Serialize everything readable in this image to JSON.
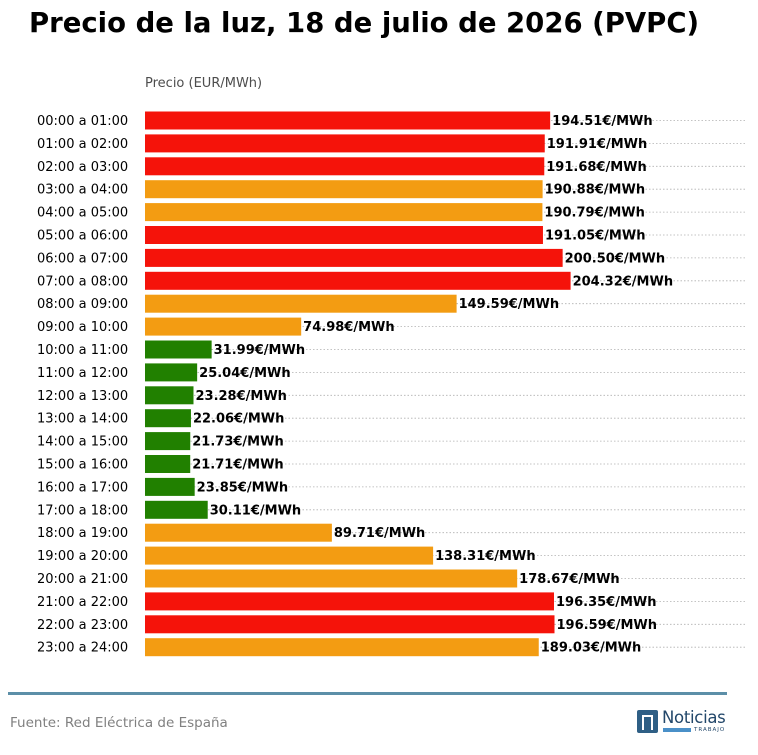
{
  "title": "Precio de la luz, 18 de julio de 2026 (PVPC)",
  "source": "Fuente: Red Eléctrica de España",
  "logo": {
    "word": "Noticias",
    "sub": "TRABAJO"
  },
  "colors": {
    "high": "#f5130a",
    "mid": "#f39c12",
    "low": "#218000",
    "gridline": "#b0b0b0",
    "rule": "#5c8fa8",
    "logo_mark": "#2f5f85",
    "logo_accent": "#4a90c8"
  },
  "chart_data": {
    "type": "bar",
    "orientation": "horizontal",
    "title": "Precio de la luz, 18 de julio de 2026 (PVPC)",
    "xlabel": "Precio (EUR/MWh)",
    "ylabel": "",
    "xlim": [
      0,
      265
    ],
    "grid": "dotted horizontal lines per bar",
    "value_suffix": "€/MWh",
    "categories": [
      "00:00 a 01:00",
      "01:00 a 02:00",
      "02:00 a 03:00",
      "03:00 a 04:00",
      "04:00 a 05:00",
      "05:00 a 06:00",
      "06:00 a 07:00",
      "07:00 a 08:00",
      "08:00 a 09:00",
      "09:00 a 10:00",
      "10:00 a 11:00",
      "11:00 a 12:00",
      "12:00 a 13:00",
      "13:00 a 14:00",
      "14:00 a 15:00",
      "15:00 a 16:00",
      "16:00 a 17:00",
      "17:00 a 18:00",
      "18:00 a 19:00",
      "19:00 a 20:00",
      "20:00 a 21:00",
      "21:00 a 22:00",
      "22:00 a 23:00",
      "23:00 a 24:00"
    ],
    "values": [
      194.51,
      191.91,
      191.68,
      190.88,
      190.79,
      191.05,
      200.5,
      204.32,
      149.59,
      74.98,
      31.99,
      25.04,
      23.28,
      22.06,
      21.73,
      21.71,
      23.85,
      30.11,
      89.71,
      138.31,
      178.67,
      196.35,
      196.59,
      189.03
    ],
    "value_labels": [
      "194.51€/MWh",
      "191.91€/MWh",
      "191.68€/MWh",
      "190.88€/MWh",
      "190.79€/MWh",
      "191.05€/MWh",
      "200.50€/MWh",
      "204.32€/MWh",
      "149.59€/MWh",
      "74.98€/MWh",
      "31.99€/MWh",
      "25.04€/MWh",
      "23.28€/MWh",
      "22.06€/MWh",
      "21.73€/MWh",
      "21.71€/MWh",
      "23.85€/MWh",
      "30.11€/MWh",
      "89.71€/MWh",
      "138.31€/MWh",
      "178.67€/MWh",
      "196.35€/MWh",
      "196.59€/MWh",
      "189.03€/MWh"
    ],
    "levels": [
      "high",
      "high",
      "high",
      "mid",
      "mid",
      "high",
      "high",
      "high",
      "mid",
      "mid",
      "low",
      "low",
      "low",
      "low",
      "low",
      "low",
      "low",
      "low",
      "mid",
      "mid",
      "mid",
      "high",
      "high",
      "mid"
    ]
  }
}
